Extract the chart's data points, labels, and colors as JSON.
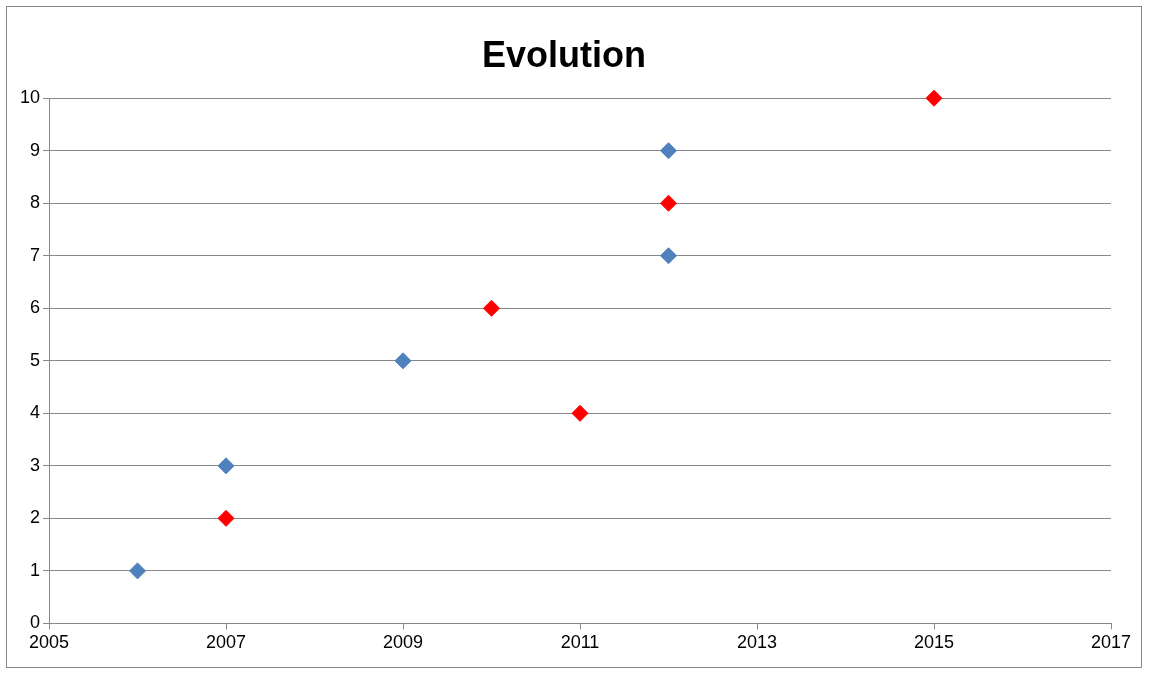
{
  "chart_data": {
    "type": "scatter",
    "title": "Evolution",
    "series": [
      {
        "color": "#4f81bd",
        "x": [
          2006,
          2007,
          2009,
          2012,
          2012
        ],
        "values": [
          1,
          3,
          5,
          7,
          9
        ]
      },
      {
        "color": "#ff0000",
        "x": [
          2007,
          2010,
          2011,
          2012,
          2015
        ],
        "values": [
          2,
          6,
          4,
          8,
          10
        ]
      }
    ],
    "xlim": [
      2005,
      2017
    ],
    "xticks": [
      2005,
      2007,
      2009,
      2011,
      2013,
      2015,
      2017
    ],
    "ylim": [
      0,
      10
    ],
    "yticks": [
      0,
      1,
      2,
      3,
      4,
      5,
      6,
      7,
      8,
      9,
      10
    ],
    "grid": "y",
    "legend": false,
    "marker": "diamond"
  }
}
